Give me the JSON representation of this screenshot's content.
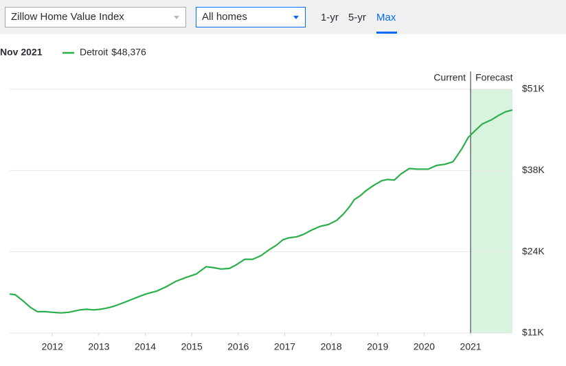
{
  "controls": {
    "metric": "Zillow Home Value Index",
    "home_type": "All homes",
    "ranges": [
      "1-yr",
      "5-yr",
      "Max"
    ],
    "active_range": 2
  },
  "chart_data": {
    "type": "line",
    "legend_date": "Nov 2021",
    "legend_value": "$48,376",
    "current_label": "Current",
    "forecast_label": "Forecast",
    "forecast_start": 2021,
    "forecast_color": "#d8f3de",
    "x": [
      2011.08,
      2011.2,
      2011.35,
      2011.53,
      2011.68,
      2011.85,
      2012,
      2012.18,
      2012.35,
      2012.59,
      2012.74,
      2012.89,
      2013.03,
      2013.18,
      2013.33,
      2013.54,
      2013.77,
      2014.01,
      2014.25,
      2014.45,
      2014.66,
      2014.87,
      2015.1,
      2015.31,
      2015.49,
      2015.63,
      2015.81,
      2015.96,
      2016.14,
      2016.31,
      2016.49,
      2016.67,
      2016.82,
      2016.96,
      2017.08,
      2017.26,
      2017.41,
      2017.58,
      2017.76,
      2017.94,
      2018.12,
      2018.26,
      2018.38,
      2018.5,
      2018.62,
      2018.74,
      2018.91,
      2019.09,
      2019.21,
      2019.36,
      2019.5,
      2019.68,
      2019.86,
      2020.09,
      2020.27,
      2020.45,
      2020.62,
      2020.8,
      2020.95,
      2021.07,
      2021.25,
      2021.45,
      2021.6,
      2021.75,
      2021.9
    ],
    "series": [
      {
        "name": "Detroit",
        "color": "#2aae4a",
        "values": [
          17400,
          17300,
          16400,
          15200,
          14500,
          14500,
          14400,
          14300,
          14400,
          14800,
          14900,
          14800,
          14900,
          15100,
          15400,
          16000,
          16700,
          17400,
          17900,
          18600,
          19500,
          20100,
          20700,
          21900,
          21700,
          21500,
          21600,
          22200,
          23100,
          23100,
          23700,
          24700,
          25400,
          26300,
          26600,
          26800,
          27200,
          27900,
          28500,
          28800,
          29500,
          30500,
          31600,
          32900,
          33500,
          34300,
          35200,
          36000,
          36200,
          36100,
          37100,
          38000,
          37900,
          37900,
          38500,
          38700,
          39100,
          41100,
          43100,
          44000,
          45300,
          46000,
          46700,
          47300,
          47600
        ]
      }
    ],
    "xlim": [
      2011.08,
      2021.9
    ],
    "xticks": [
      2012,
      2013,
      2014,
      2015,
      2016,
      2017,
      2018,
      2019,
      2020,
      2021
    ],
    "ylim": [
      11000,
      51000
    ],
    "yticks": [
      {
        "value": 11000,
        "label": "$11K"
      },
      {
        "value": 24333,
        "label": "$24K"
      },
      {
        "value": 37667,
        "label": "$38K"
      },
      {
        "value": 51000,
        "label": "$51K"
      }
    ],
    "grid": true
  }
}
